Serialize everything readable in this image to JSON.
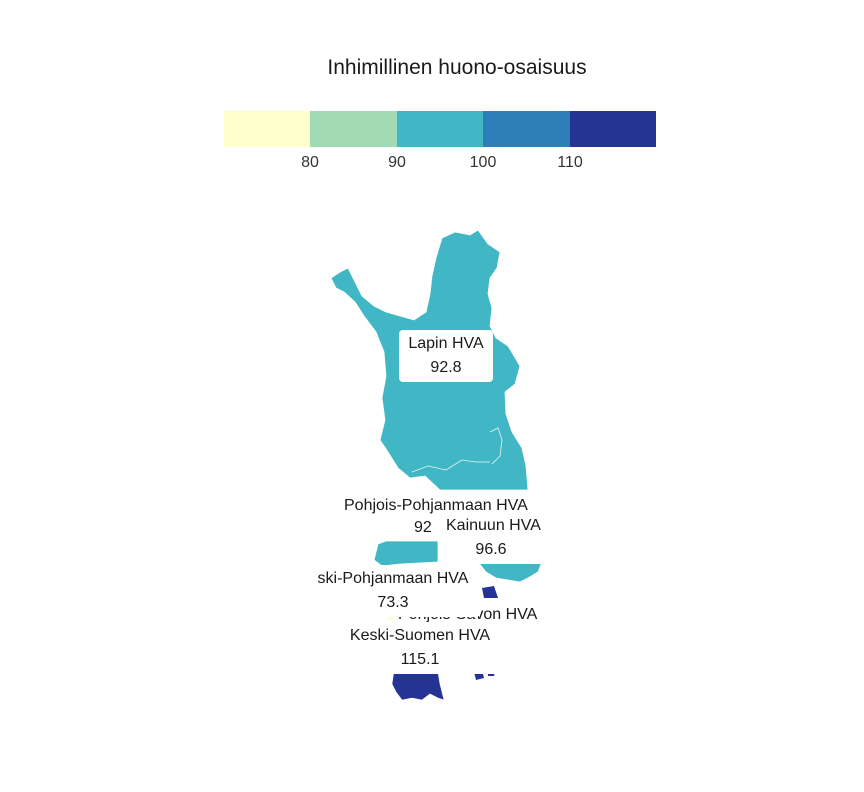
{
  "legend": {
    "title": "Inhimillinen huono-osaisuus",
    "bins": [
      {
        "color": "#ffffcc"
      },
      {
        "color": "#a1dab4"
      },
      {
        "color": "#41b6c4"
      },
      {
        "color": "#2c7fb8"
      },
      {
        "color": "#253494"
      }
    ],
    "ticks": [
      "80",
      "90",
      "100",
      "110"
    ]
  },
  "regions": [
    {
      "name": "Lapin HVA",
      "value": "92.8",
      "color": "#41b6c4"
    },
    {
      "name": "Pohjois-Pohjanmaan HVA",
      "value": "92",
      "color": "#41b6c4"
    },
    {
      "name": "Kainuun HVA",
      "value": "96.6",
      "color": "#41b6c4"
    },
    {
      "name": "ski-Pohjanmaan HVA",
      "value": "73.3",
      "color": "#ffffcc"
    },
    {
      "name": "Pohjois-Savon HVA",
      "value": "",
      "color": "#253494"
    },
    {
      "name": "Keski-Suomen HVA",
      "value": "115.1",
      "color": "#253494"
    }
  ]
}
